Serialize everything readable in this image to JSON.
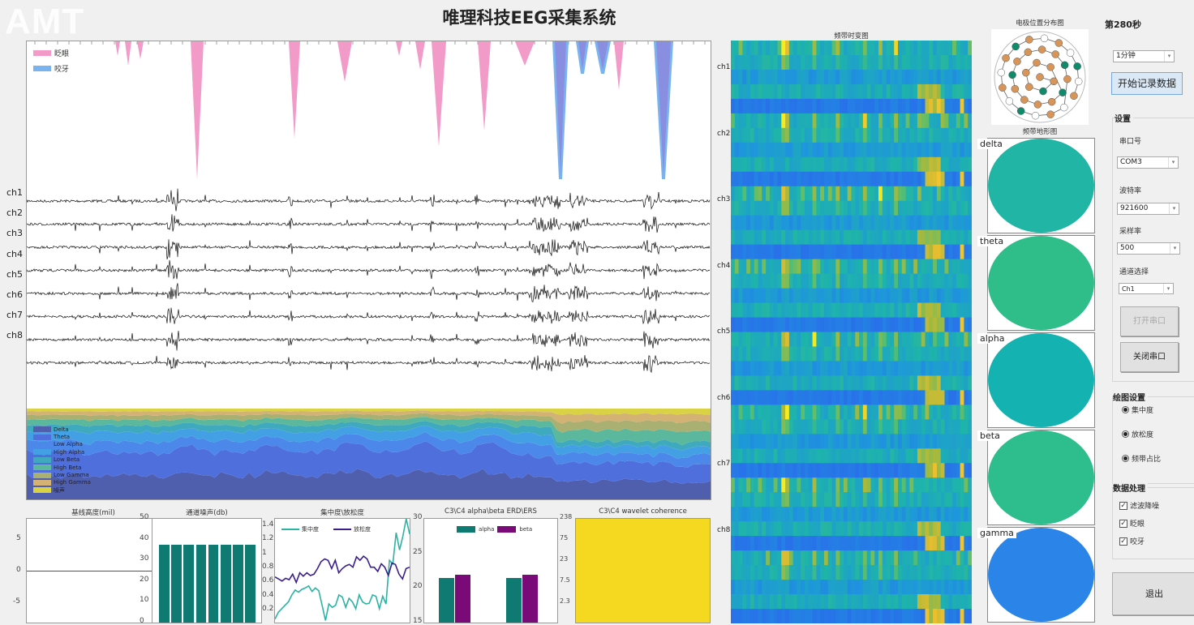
{
  "app": {
    "title": "唯理科技EEG采集系统",
    "logo": "AMT"
  },
  "main_plot": {
    "event_legend": [
      {
        "label": "眨眼",
        "color": "#f29ac8"
      },
      {
        "label": "咬牙",
        "color": "#7ab4f0"
      }
    ],
    "channels": [
      "ch1",
      "ch2",
      "ch3",
      "ch4",
      "ch5",
      "ch6",
      "ch7",
      "ch8"
    ],
    "band_legend": [
      {
        "label": "Delta",
        "color": "#4f5fae"
      },
      {
        "label": "Theta",
        "color": "#4f6fdc"
      },
      {
        "label": "Low Alpha",
        "color": "#4c88ea"
      },
      {
        "label": "High Alpha",
        "color": "#44a0e4"
      },
      {
        "label": "Low Beta",
        "color": "#3fa9bd"
      },
      {
        "label": "High Beta",
        "color": "#5bb89c"
      },
      {
        "label": "Low Gamma",
        "color": "#a9b072"
      },
      {
        "label": "High Gamma",
        "color": "#d3b274"
      },
      {
        "label": "噪声",
        "color": "#d9d244"
      }
    ]
  },
  "baseline_chart": {
    "title": "基线高度(mil)",
    "yticks": [
      "5",
      "0",
      "-5"
    ]
  },
  "noise_chart": {
    "title": "通道噪声(db)",
    "yticks": [
      "50",
      "40",
      "30",
      "20",
      "10",
      "0"
    ],
    "ylim": [
      0,
      50
    ],
    "values": [
      37.5,
      37.5,
      37.5,
      37.5,
      37.5,
      37.5,
      37.5,
      37.5
    ],
    "color": "#0f7a72"
  },
  "focus_chart": {
    "title": "集中度\\放松度",
    "yticks": [
      "1.4",
      "1.2",
      "1",
      "0.8",
      "0.6",
      "0.4",
      "0.2"
    ],
    "ylim": [
      0,
      1.5
    ],
    "series": [
      {
        "name": "集中度",
        "color": "#2bb3a3",
        "values": [
          0.05,
          0.15,
          0.2,
          0.25,
          0.3,
          0.4,
          0.47,
          0.44,
          0.48,
          0.5,
          0.53,
          0.45,
          0.5,
          0.46,
          0.25,
          0.03,
          0.27,
          0.22,
          0.25,
          0.4,
          0.37,
          0.22,
          0.35,
          0.3,
          0.2,
          0.4,
          0.3,
          0.27,
          0.28,
          0.4,
          0.38,
          0.2,
          0.38,
          0.27,
          0.9,
          0.85,
          1.3,
          1.05,
          1.25,
          1.5,
          1.28
        ]
      },
      {
        "name": "放松度",
        "color": "#3a1f8c",
        "values": [
          0.66,
          0.63,
          0.6,
          0.64,
          0.62,
          0.7,
          0.58,
          0.72,
          0.67,
          0.72,
          0.68,
          0.7,
          0.78,
          0.88,
          0.92,
          0.9,
          0.78,
          0.9,
          0.72,
          0.78,
          0.82,
          0.84,
          0.8,
          0.95,
          0.9,
          0.96,
          0.92,
          0.8,
          0.8,
          0.74,
          0.85,
          0.8,
          0.68,
          0.86,
          0.84,
          0.7,
          0.63,
          0.78,
          0.8
        ]
      }
    ]
  },
  "erd_chart": {
    "title": "C3\\C4 alpha\\beta ERD\\ERS",
    "yticks": [
      "30",
      "25",
      "20",
      "15"
    ],
    "ylim": [
      15,
      30
    ],
    "series": [
      {
        "name": "alpha",
        "color": "#0f7a72",
        "values": [
          21.5,
          21.5
        ]
      },
      {
        "name": "beta",
        "color": "#7a0a78",
        "values": [
          21.9,
          21.9
        ]
      }
    ]
  },
  "coherence_chart": {
    "title": "C3\\C4 wavelet coherence",
    "yticks": [
      "238",
      "75",
      "23",
      "7.5",
      "2.3"
    ],
    "fill": "#f5d820"
  },
  "heatmap": {
    "title": "频带时变图",
    "channels": [
      "ch1",
      "ch2",
      "ch3",
      "ch4",
      "ch5",
      "ch6",
      "ch7",
      "ch8"
    ]
  },
  "electrode_map": {
    "title": "电极位置分布图"
  },
  "topomap": {
    "title": "频带地形图",
    "bands": [
      {
        "label": "delta",
        "color": "#20b5a5"
      },
      {
        "label": "theta",
        "color": "#2fbe8a"
      },
      {
        "label": "alpha",
        "color": "#14b3b2"
      },
      {
        "label": "beta",
        "color": "#2ebe8e"
      },
      {
        "label": "gamma",
        "color": "#2b84e8"
      }
    ]
  },
  "controls": {
    "time_label": "第280秒",
    "duration": "1分钟",
    "record_button": "开始记录数据",
    "settings": {
      "title": "设置",
      "port_label": "串口号",
      "port": "COM3",
      "baud_label": "波特率",
      "baud": "921600",
      "rate_label": "采样率",
      "rate": "500",
      "channel_label": "通道选择",
      "channel": "Ch1",
      "open_button": "打开串口",
      "close_button": "关闭串口"
    },
    "plot_settings": {
      "title": "绘图设置",
      "options": [
        "集中度",
        "放松度",
        "频带占比"
      ]
    },
    "processing": {
      "title": "数据处理",
      "options": [
        "滤波降噪",
        "眨眼",
        "咬牙"
      ]
    },
    "exit_button": "退出"
  }
}
